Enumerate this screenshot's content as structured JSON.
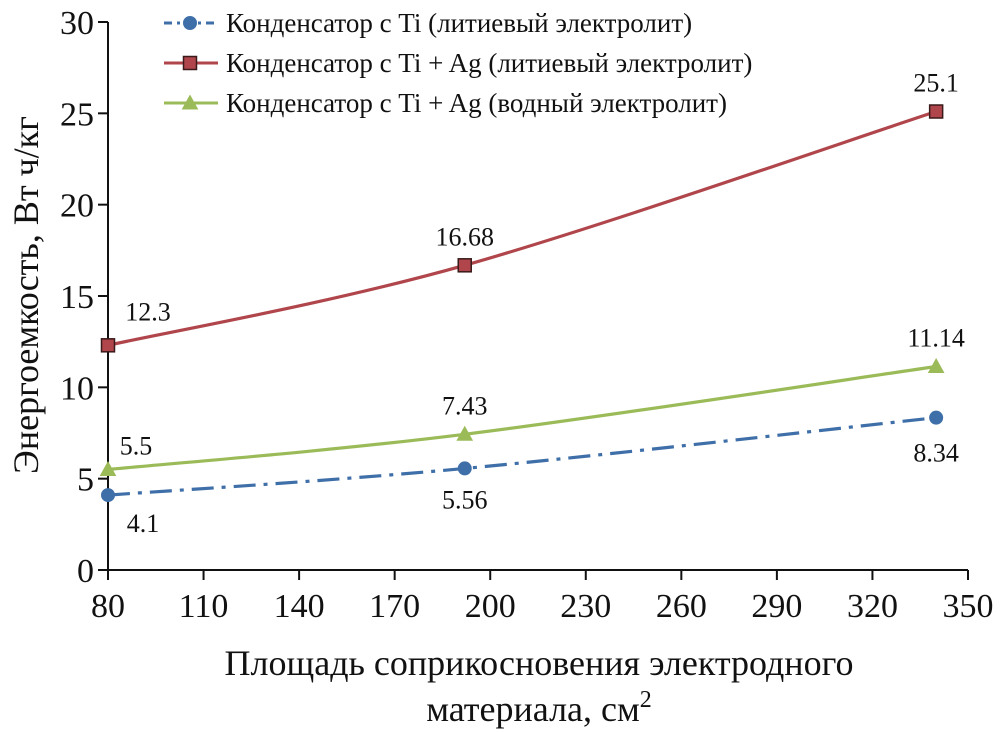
{
  "chart_data": {
    "type": "line",
    "xlabel_line1": "Площадь соприкосновения электродного",
    "xlabel_line2": "материала, см",
    "xlabel_sup": "2",
    "ylabel": "Энергоемкость, Вт ч/кг",
    "xlim": [
      80,
      350
    ],
    "ylim": [
      0,
      30
    ],
    "xticks": [
      80,
      110,
      140,
      170,
      200,
      230,
      260,
      290,
      320,
      350
    ],
    "yticks": [
      0,
      5,
      10,
      15,
      20,
      25,
      30
    ],
    "legend_position": "top",
    "series": [
      {
        "name": "Конденсатор с Ti (литиевый электролит)",
        "color": "#3f6fa8",
        "marker": "circle",
        "line_style": "dash-dot",
        "x": [
          80,
          192,
          340
        ],
        "y": [
          4.1,
          5.56,
          8.34
        ],
        "labels": [
          "4.1",
          "5.56",
          "8.34"
        ]
      },
      {
        "name": "Конденсатор с Ti + Ag (литиевый электролит)",
        "color": "#b0464b",
        "marker": "square",
        "line_style": "solid",
        "x": [
          80,
          192,
          340
        ],
        "y": [
          12.3,
          16.68,
          25.1
        ],
        "labels": [
          "12.3",
          "16.68",
          "25.1"
        ]
      },
      {
        "name": "Конденсатор с Ti + Ag (водный электролит)",
        "color": "#9bbb59",
        "marker": "triangle",
        "line_style": "solid",
        "x": [
          80,
          192,
          340
        ],
        "y": [
          5.5,
          7.43,
          11.14
        ],
        "labels": [
          "5.5",
          "7.43",
          "11.14"
        ]
      }
    ]
  }
}
